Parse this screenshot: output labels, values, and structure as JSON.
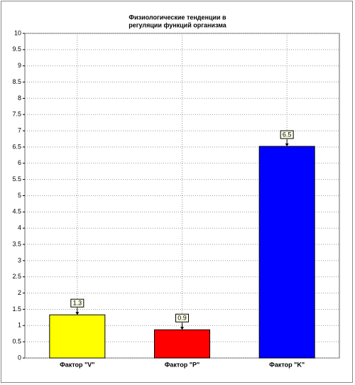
{
  "chart_data": {
    "type": "bar",
    "title": [
      "Физиологические тенденции в",
      "регуляции функций организма"
    ],
    "categories": [
      "Фактор \"V\"",
      "Фактор \"P\"",
      "Фактор \"K\""
    ],
    "values": [
      1.33,
      0.87,
      6.52
    ],
    "value_labels": [
      "1.3",
      "0.9",
      "6.5"
    ],
    "colors": [
      "#ffff00",
      "#ff0000",
      "#0000ff"
    ],
    "ylim": [
      0,
      10
    ],
    "yticks": [
      0,
      0.5,
      1,
      1.5,
      2,
      2.5,
      3,
      3.5,
      4,
      4.5,
      5,
      5.5,
      6,
      6.5,
      7,
      7.5,
      8,
      8.5,
      9,
      9.5,
      10
    ],
    "grid": true
  }
}
